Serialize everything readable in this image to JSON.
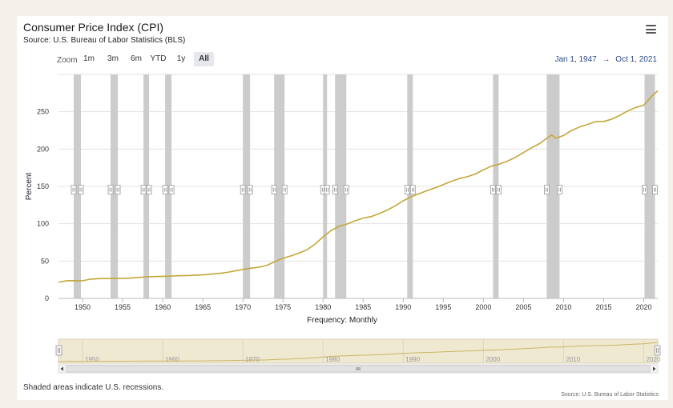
{
  "header": {
    "title": "Consumer Price Index (CPI)",
    "subtitle": "Source: U.S. Bureau of Labor Statistics (BLS)",
    "menu_icon": "hamburger-menu-icon"
  },
  "zoom": {
    "label": "Zoom",
    "buttons": [
      "1m",
      "3m",
      "6m",
      "YTD",
      "1y",
      "All"
    ],
    "active": "All"
  },
  "range": {
    "from": "Jan 1, 1947",
    "separator": "→",
    "to": "Oct 1, 2021"
  },
  "footnote": "Shaded areas indicate U.S. recessions.",
  "source_credit": "Source: U.S. Bureau of Labor Statistics",
  "colors": {
    "line": "#c4a637",
    "recession": "#cccccc",
    "navigator_fill": "#efe9d2",
    "range_text": "#2b4a8a"
  },
  "chart_data": {
    "type": "line",
    "title": "Consumer Price Index (CPI)",
    "xlabel": "Frequency: Monthly",
    "ylabel": "Percent",
    "xlim": [
      1947.0,
      2021.75
    ],
    "ylim": [
      0,
      300
    ],
    "y_ticks": [
      0,
      50,
      100,
      150,
      200,
      250
    ],
    "x_ticks": [
      1950,
      1955,
      1960,
      1965,
      1970,
      1975,
      1980,
      1985,
      1990,
      1995,
      2000,
      2005,
      2010,
      2015,
      2020
    ],
    "grid": true,
    "legend": "none",
    "series": [
      {
        "x": [
          1947,
          1948,
          1949,
          1950,
          1951,
          1952,
          1953,
          1954,
          1955,
          1956,
          1957,
          1958,
          1959,
          1960,
          1961,
          1962,
          1963,
          1964,
          1965,
          1966,
          1967,
          1968,
          1969,
          1970,
          1971,
          1972,
          1973,
          1974,
          1975,
          1976,
          1977,
          1978,
          1979,
          1980,
          1981,
          1982,
          1983,
          1984,
          1985,
          1986,
          1987,
          1988,
          1989,
          1990,
          1991,
          1992,
          1993,
          1994,
          1995,
          1996,
          1997,
          1998,
          1999,
          2000,
          2001,
          2002,
          2003,
          2004,
          2005,
          2006,
          2007,
          2008.5,
          2009,
          2010,
          2011,
          2012,
          2013,
          2014,
          2015,
          2016,
          2017,
          2018,
          2019,
          2020,
          2021,
          2021.75
        ],
        "values": [
          21.5,
          23.7,
          23.8,
          23.6,
          25.8,
          26.5,
          26.7,
          26.9,
          26.8,
          27.2,
          28.1,
          28.9,
          29.2,
          29.6,
          29.9,
          30.3,
          30.6,
          31.0,
          31.5,
          32.5,
          33.4,
          34.8,
          36.7,
          38.8,
          40.5,
          41.8,
          44.4,
          49.3,
          53.8,
          56.9,
          60.6,
          65.2,
          72.6,
          82.4,
          90.9,
          96.5,
          99.6,
          103.9,
          107.6,
          109.6,
          113.6,
          118.3,
          124.0,
          130.7,
          136.2,
          140.3,
          144.5,
          148.2,
          152.4,
          156.9,
          160.5,
          163.0,
          166.6,
          172.2,
          177.1,
          179.9,
          184.0,
          188.9,
          195.3,
          201.6,
          207.3,
          219.0,
          214.5,
          218.1,
          224.9,
          229.6,
          233.0,
          236.7,
          237.0,
          240.0,
          245.1,
          251.1,
          255.7,
          258.8,
          270.9,
          278.0
        ]
      }
    ],
    "recessions": [
      [
        1948.9,
        1949.8
      ],
      [
        1953.5,
        1954.4
      ],
      [
        1957.6,
        1958.3
      ],
      [
        1960.3,
        1961.1
      ],
      [
        1970.0,
        1970.9
      ],
      [
        1973.9,
        1975.2
      ],
      [
        1980.0,
        1980.5
      ],
      [
        1981.5,
        1982.9
      ],
      [
        1990.5,
        1991.2
      ],
      [
        2001.2,
        2001.9
      ],
      [
        2007.9,
        2009.5
      ],
      [
        2020.1,
        2021.4
      ]
    ],
    "navigator": {
      "x_ticks": [
        1950,
        1960,
        1970,
        1980,
        1990,
        2000,
        2010,
        2020
      ]
    }
  }
}
